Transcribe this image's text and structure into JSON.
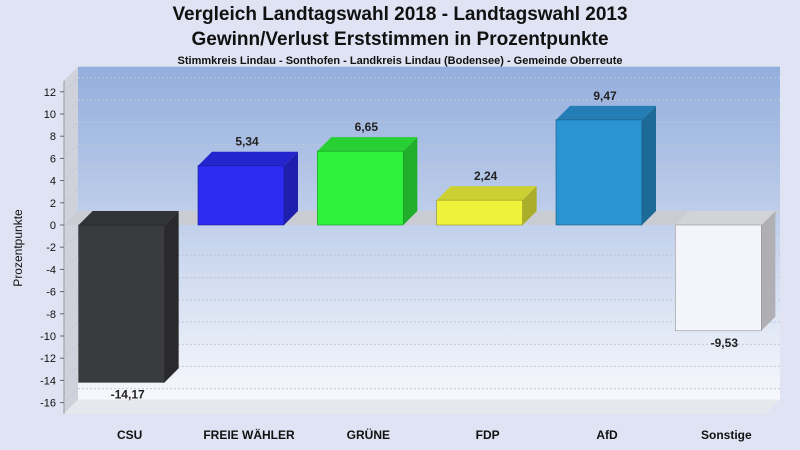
{
  "chart_data": {
    "type": "bar",
    "title": "Vergleich Landtagswahl 2018 - Landtagswahl 2013",
    "subtitle": "Gewinn/Verlust Erststimmen in Prozentpunkte",
    "subtitle2": "Stimmkreis Lindau - Sonthofen - Landkreis Lindau (Bodensee) - Gemeinde Oberreute",
    "xlabel": "",
    "ylabel": "Prozentpunkte",
    "ylim": [
      -17,
      13
    ],
    "yticks": [
      12,
      10,
      8,
      6,
      4,
      2,
      0,
      -2,
      -4,
      -6,
      -8,
      -10,
      -12,
      -14,
      -16
    ],
    "categories": [
      "CSU",
      "FREIE WÄHLER",
      "GRÜNE",
      "FDP",
      "AfD",
      "Sonstige"
    ],
    "values": [
      -14.17,
      5.34,
      6.65,
      2.24,
      9.47,
      -9.53
    ],
    "value_labels": [
      "-14,17",
      "5,34",
      "6,65",
      "2,24",
      "9,47",
      "-9,53"
    ],
    "colors": [
      "#3a3b3f",
      "#2b2bf2",
      "#2ef23c",
      "#eef23a",
      "#2a93d2",
      "#f4f5fa"
    ],
    "grid": true,
    "legend": "none"
  }
}
